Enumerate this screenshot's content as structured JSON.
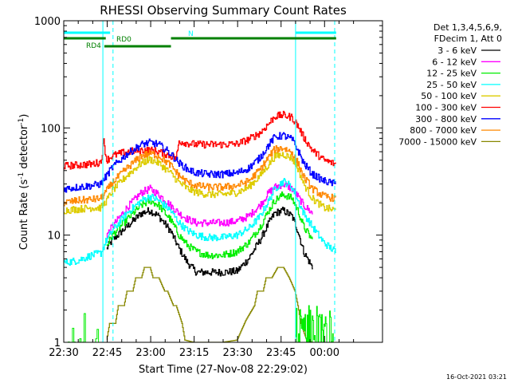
{
  "chart_data": {
    "type": "line",
    "title": "RHESSI Observing Summary Count Rates",
    "xlabel": "Start Time (27-Nov-08 22:29:02)",
    "ylabel_main": "Count Rate (s",
    "ylabel_sup1": "-1",
    "ylabel_mid": " detector",
    "ylabel_sup2": "-1",
    "ylabel_end": ")",
    "yscale": "log",
    "ylim": [
      1,
      1000
    ],
    "x_unit": "minutes after 22:30",
    "xlim": [
      0,
      110
    ],
    "x_ticks": [
      {
        "v": 0,
        "label": "22:30"
      },
      {
        "v": 15,
        "label": "22:45"
      },
      {
        "v": 30,
        "label": "23:00"
      },
      {
        "v": 45,
        "label": "23:15"
      },
      {
        "v": 60,
        "label": "23:30"
      },
      {
        "v": 75,
        "label": "23:45"
      },
      {
        "v": 90,
        "label": "00:00"
      }
    ],
    "y_ticks": [
      {
        "v": 1,
        "label": "1"
      },
      {
        "v": 10,
        "label": "10"
      },
      {
        "v": 100,
        "label": "100"
      },
      {
        "v": 1000,
        "label": "1000"
      }
    ],
    "legend_header": [
      "Det 1,3,4,5,6,9,",
      "FDecim 1, Att 0"
    ],
    "legend_position": "right",
    "series": [
      {
        "name": "3 - 6 keV",
        "color": "#000000",
        "x": [
          15,
          17,
          22,
          27,
          30,
          33,
          37,
          40,
          43,
          46,
          50,
          55,
          60,
          64,
          68,
          71,
          73,
          76,
          79,
          81,
          83,
          86
        ],
        "y": [
          7.5,
          9,
          12,
          16,
          17,
          15,
          11,
          7.5,
          5.5,
          4.5,
          4.5,
          4.5,
          4.6,
          6,
          9,
          13,
          16,
          17,
          15,
          11,
          7,
          5
        ]
      },
      {
        "name": "6 - 12 keV",
        "color": "#ff00ff",
        "x": [
          15,
          17,
          22,
          27,
          30,
          33,
          37,
          40,
          43,
          46,
          50,
          55,
          60,
          64,
          68,
          71,
          73,
          76,
          79,
          81,
          83,
          86
        ],
        "y": [
          10,
          12,
          18,
          25,
          27,
          24,
          19,
          16,
          14,
          13,
          13,
          13,
          13.5,
          15,
          19,
          25,
          28,
          30,
          27,
          23,
          19,
          16
        ]
      },
      {
        "name": "12 - 25 keV",
        "color": "#00ee00",
        "x": [
          15,
          17,
          22,
          27,
          30,
          33,
          37,
          40,
          43,
          46,
          50,
          55,
          60,
          64,
          68,
          71,
          73,
          76,
          79,
          81,
          83,
          86
        ],
        "y": [
          8,
          10,
          14,
          19,
          21,
          19,
          14,
          10,
          8,
          7,
          6.5,
          6.5,
          7,
          8.5,
          12,
          17,
          21,
          24,
          22,
          17,
          12,
          9
        ]
      },
      {
        "name": "25 - 50 keV",
        "color": "#00ffff",
        "x": [
          0,
          5,
          10,
          13,
          15,
          17,
          22,
          27,
          30,
          33,
          37,
          40,
          43,
          46,
          50,
          55,
          60,
          64,
          68,
          71,
          73,
          76,
          79,
          81,
          83,
          86,
          90,
          94
        ],
        "y": [
          5.5,
          5.8,
          6.5,
          6.8,
          9,
          11,
          16,
          21,
          23,
          21,
          17,
          13,
          11,
          10,
          9.5,
          9.5,
          10,
          11.5,
          15,
          21,
          27,
          32,
          28,
          21,
          16,
          12,
          8.5,
          7
        ]
      },
      {
        "name": "50 - 100 keV",
        "color": "#ddcc00",
        "x": [
          0,
          5,
          10,
          13,
          15,
          17,
          22,
          27,
          30,
          33,
          37,
          40,
          43,
          46,
          50,
          55,
          60,
          64,
          68,
          71,
          73,
          76,
          79,
          81,
          83,
          86,
          90,
          94
        ],
        "y": [
          17,
          17.5,
          18,
          18,
          21,
          26,
          36,
          47,
          51,
          47,
          38,
          31,
          27,
          25,
          24,
          24,
          25,
          28,
          36,
          46,
          54,
          57,
          52,
          42,
          30,
          22,
          18,
          17
        ]
      },
      {
        "name": "100 - 300 keV",
        "color": "#ff0000",
        "x": [
          0,
          5,
          10,
          13,
          14,
          15,
          17,
          22,
          27,
          30,
          33,
          37,
          39,
          40,
          43,
          46,
          50,
          55,
          60,
          64,
          68,
          71,
          73,
          76,
          79,
          81,
          83,
          86,
          90,
          94
        ],
        "y": [
          44,
          45,
          46,
          48,
          75,
          50,
          55,
          60,
          62,
          62,
          60,
          55,
          52,
          75,
          72,
          70,
          70,
          70,
          71,
          78,
          90,
          110,
          128,
          132,
          125,
          105,
          82,
          62,
          50,
          46
        ]
      },
      {
        "name": "300 - 800 keV",
        "color": "#0000ff",
        "x": [
          0,
          5,
          10,
          13,
          15,
          17,
          22,
          27,
          30,
          33,
          37,
          40,
          43,
          46,
          50,
          55,
          60,
          64,
          68,
          71,
          73,
          76,
          79,
          81,
          83,
          86,
          90,
          94
        ],
        "y": [
          27,
          28,
          29,
          30,
          36,
          43,
          57,
          70,
          73,
          70,
          58,
          47,
          41,
          38,
          37,
          37,
          38,
          42,
          53,
          70,
          82,
          85,
          78,
          62,
          47,
          37,
          32,
          30
        ]
      },
      {
        "name": "800 - 7000 keV",
        "color": "#ff8800",
        "x": [
          0,
          5,
          10,
          13,
          15,
          17,
          22,
          27,
          30,
          33,
          37,
          40,
          43,
          46,
          50,
          55,
          60,
          64,
          68,
          71,
          73,
          76,
          79,
          81,
          83,
          86,
          90,
          94
        ],
        "y": [
          20,
          21,
          21.5,
          22,
          26,
          31,
          42,
          55,
          58,
          55,
          45,
          36,
          31,
          29,
          28,
          28,
          29,
          32,
          41,
          54,
          63,
          65,
          59,
          47,
          35,
          27,
          23,
          22
        ]
      },
      {
        "name": "7000 - 15000 keV",
        "color": "#888800",
        "x": [
          15,
          16,
          18,
          19,
          21,
          22,
          24,
          25,
          27,
          28,
          30,
          31,
          33,
          35,
          36,
          38,
          39,
          41,
          42,
          45,
          55,
          60,
          63,
          66,
          67,
          69,
          70,
          72,
          74,
          76,
          78,
          80,
          81,
          82,
          84,
          86
        ],
        "y": [
          1.05,
          1.5,
          1.5,
          2.2,
          2.2,
          3,
          3,
          4,
          4,
          5,
          5,
          4,
          4,
          3,
          3,
          2.2,
          2.2,
          1.5,
          1.05,
          1.0,
          1.0,
          1.05,
          1.6,
          2.2,
          3,
          3,
          4,
          4,
          5,
          5,
          4,
          3,
          2.2,
          1.5,
          1.05,
          1.0
        ]
      }
    ],
    "attenuator_bars": [
      {
        "label": "N",
        "color": "#00ffff",
        "segments": [
          [
            0,
            16
          ],
          [
            80,
            94
          ]
        ]
      },
      {
        "label": "RD0",
        "color": "#008000",
        "segments": [
          [
            0,
            14.5
          ],
          [
            37,
            94
          ]
        ]
      },
      {
        "label": "RD4",
        "color": "#008000",
        "segments": [
          [
            14,
            37
          ]
        ]
      }
    ],
    "vlines_solid": [
      13.5,
      80
    ],
    "vlines_dashed": [
      17,
      93.5
    ]
  },
  "footer_date": "16-Oct-2021 03:21"
}
